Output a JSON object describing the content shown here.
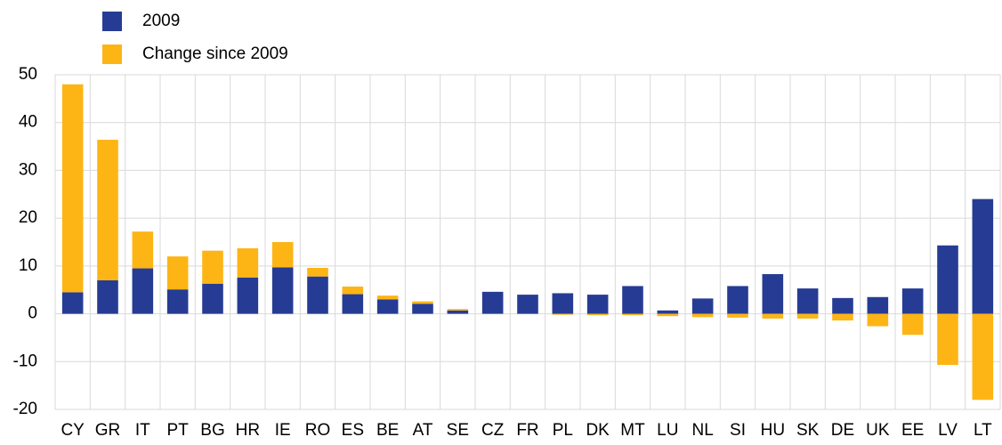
{
  "chart_data": {
    "type": "stacked_bar",
    "categories": [
      "CY",
      "GR",
      "IT",
      "PT",
      "BG",
      "HR",
      "IE",
      "RO",
      "ES",
      "BE",
      "AT",
      "SE",
      "CZ",
      "FR",
      "PL",
      "DK",
      "MT",
      "LU",
      "NL",
      "SI",
      "HU",
      "SK",
      "DE",
      "UK",
      "EE",
      "LV",
      "LT"
    ],
    "series": [
      {
        "name": "2009",
        "color": "#263c94",
        "values": [
          4.5,
          7,
          9.5,
          5.1,
          6.3,
          7.6,
          9.7,
          7.8,
          4.1,
          3.0,
          2.1,
          0.7,
          4.6,
          4.0,
          4.3,
          4.0,
          5.8,
          0.7,
          3.2,
          5.8,
          8.3,
          5.3,
          3.3,
          3.5,
          5.3,
          14.3,
          24
        ]
      },
      {
        "name": "Change since 2009",
        "color": "#fdb515",
        "values": [
          43.5,
          29.4,
          7.7,
          6.9,
          6.9,
          6.1,
          5.3,
          1.8,
          1.6,
          0.8,
          0.5,
          0.3,
          0,
          0,
          -0.2,
          -0.3,
          -0.3,
          -0.5,
          -0.7,
          -0.8,
          -1.0,
          -1.0,
          -1.4,
          -2.6,
          -4.4,
          -10.7,
          -18
        ]
      }
    ],
    "ylim": [
      -20,
      50
    ],
    "yticks": [
      -20,
      -10,
      0,
      10,
      20,
      30,
      40,
      50
    ],
    "grid": true
  }
}
